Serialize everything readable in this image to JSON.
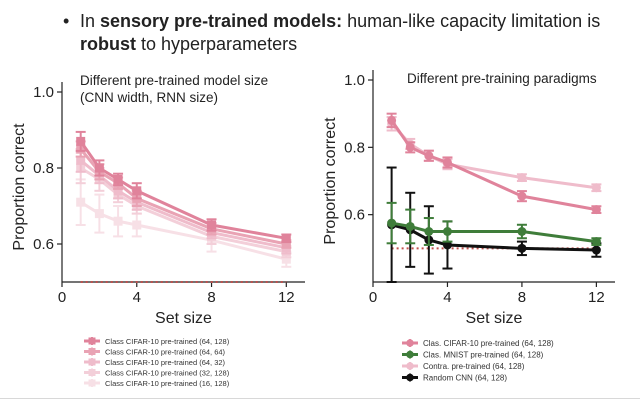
{
  "bullet": {
    "marker": "•",
    "parts": [
      {
        "text": "In ",
        "bold": false
      },
      {
        "text": "sensory pre-trained models:",
        "bold": true
      },
      {
        "text": " human-like capacity limitation is ",
        "bold": false
      },
      {
        "text": "robust",
        "bold": true
      },
      {
        "text": " to hyperparameters",
        "bold": false
      }
    ]
  },
  "colors": {
    "pink_dark": "#e0839b",
    "pink_mid": "#e9a3b4",
    "pink_light": "#efbccb",
    "pink_lighter": "#f3cfd9",
    "pink_faint": "#f7e0e6",
    "green": "#3f7d3a",
    "black": "#111111",
    "chance_line": "#c0504d",
    "axis": "#222222"
  },
  "chart_data": [
    {
      "type": "line",
      "title": "Different pre-trained model size\n(CNN width, RNN size)",
      "xlabel": "Set size",
      "ylabel": "Proportion correct",
      "xlim": [
        0,
        13
      ],
      "ylim": [
        0.5,
        1.0
      ],
      "xticks": [
        0,
        4,
        8,
        12
      ],
      "yticks": [
        0.6,
        0.8,
        1.0
      ],
      "ytick_labels": [
        "0.6",
        "0.8",
        "1.0"
      ],
      "chance_line": 0.5,
      "grid": false,
      "legend_position": "below",
      "x": [
        1,
        2,
        3,
        4,
        8,
        12
      ],
      "series": [
        {
          "name": "Class CIFAR-10 pre-trained (64, 128)",
          "color": "#e0839b",
          "marker": "square",
          "values": [
            0.87,
            0.8,
            0.77,
            0.74,
            0.65,
            0.615
          ],
          "errors": [
            0.025,
            0.02,
            0.015,
            0.02,
            0.015,
            0.01
          ]
        },
        {
          "name": "Class CIFAR-10 pre-trained (64, 64)",
          "color": "#e9a3b4",
          "marker": "square",
          "values": [
            0.85,
            0.79,
            0.76,
            0.72,
            0.64,
            0.6
          ],
          "errors": [
            0.02,
            0.02,
            0.015,
            0.02,
            0.015,
            0.01
          ]
        },
        {
          "name": "Class CIFAR-10 pre-trained (64, 32)",
          "color": "#efbccb",
          "marker": "square",
          "values": [
            0.82,
            0.78,
            0.74,
            0.71,
            0.63,
            0.59
          ],
          "errors": [
            0.03,
            0.02,
            0.02,
            0.02,
            0.015,
            0.015
          ]
        },
        {
          "name": "Class CIFAR-10 pre-trained (32, 128)",
          "color": "#f3cfd9",
          "marker": "square",
          "values": [
            0.8,
            0.77,
            0.73,
            0.7,
            0.62,
            0.58
          ],
          "errors": [
            0.04,
            0.03,
            0.02,
            0.02,
            0.02,
            0.015
          ]
        },
        {
          "name": "Class CIFAR-10 pre-trained (16, 128)",
          "color": "#f7e0e6",
          "marker": "square",
          "values": [
            0.71,
            0.68,
            0.66,
            0.65,
            0.61,
            0.56
          ],
          "errors": [
            0.06,
            0.05,
            0.04,
            0.03,
            0.03,
            0.02
          ]
        }
      ]
    },
    {
      "type": "line",
      "title": "Different pre-training paradigms",
      "xlabel": "Set size",
      "ylabel": "Proportion correct",
      "xlim": [
        0,
        13
      ],
      "ylim": [
        0.4,
        1.0
      ],
      "xticks": [
        0,
        4,
        8,
        12
      ],
      "yticks": [
        0.6,
        0.8,
        1.0
      ],
      "ytick_labels": [
        "0.6",
        "0.8",
        "1.0"
      ],
      "chance_line": 0.5,
      "grid": false,
      "legend_position": "below",
      "x": [
        1,
        2,
        3,
        4,
        8,
        12
      ],
      "series": [
        {
          "name": "Clas. CIFAR-10 pre-trained (64, 128)",
          "color": "#e0839b",
          "marker": "circle",
          "values": [
            0.88,
            0.8,
            0.775,
            0.755,
            0.655,
            0.615
          ],
          "errors": [
            0.02,
            0.015,
            0.015,
            0.015,
            0.015,
            0.01
          ]
        },
        {
          "name": "Clas. MNIST pre-trained (64, 128)",
          "color": "#3f7d3a",
          "marker": "circle",
          "values": [
            0.575,
            0.565,
            0.55,
            0.55,
            0.55,
            0.52
          ],
          "errors": [
            0.06,
            0.05,
            0.04,
            0.03,
            0.02,
            0.01
          ]
        },
        {
          "name": "Contra. pre-trained (64, 128)",
          "color": "#efbccb",
          "marker": "circle",
          "values": [
            0.87,
            0.81,
            0.775,
            0.75,
            0.71,
            0.68
          ],
          "errors": [
            0.02,
            0.015,
            0.015,
            0.015,
            0.01,
            0.01
          ]
        },
        {
          "name": "Random CNN (64, 128)",
          "color": "#111111",
          "marker": "circle",
          "values": [
            0.57,
            0.555,
            0.525,
            0.51,
            0.5,
            0.495
          ],
          "errors": [
            0.17,
            0.11,
            0.1,
            0.07,
            0.02,
            0.02
          ]
        }
      ]
    }
  ]
}
